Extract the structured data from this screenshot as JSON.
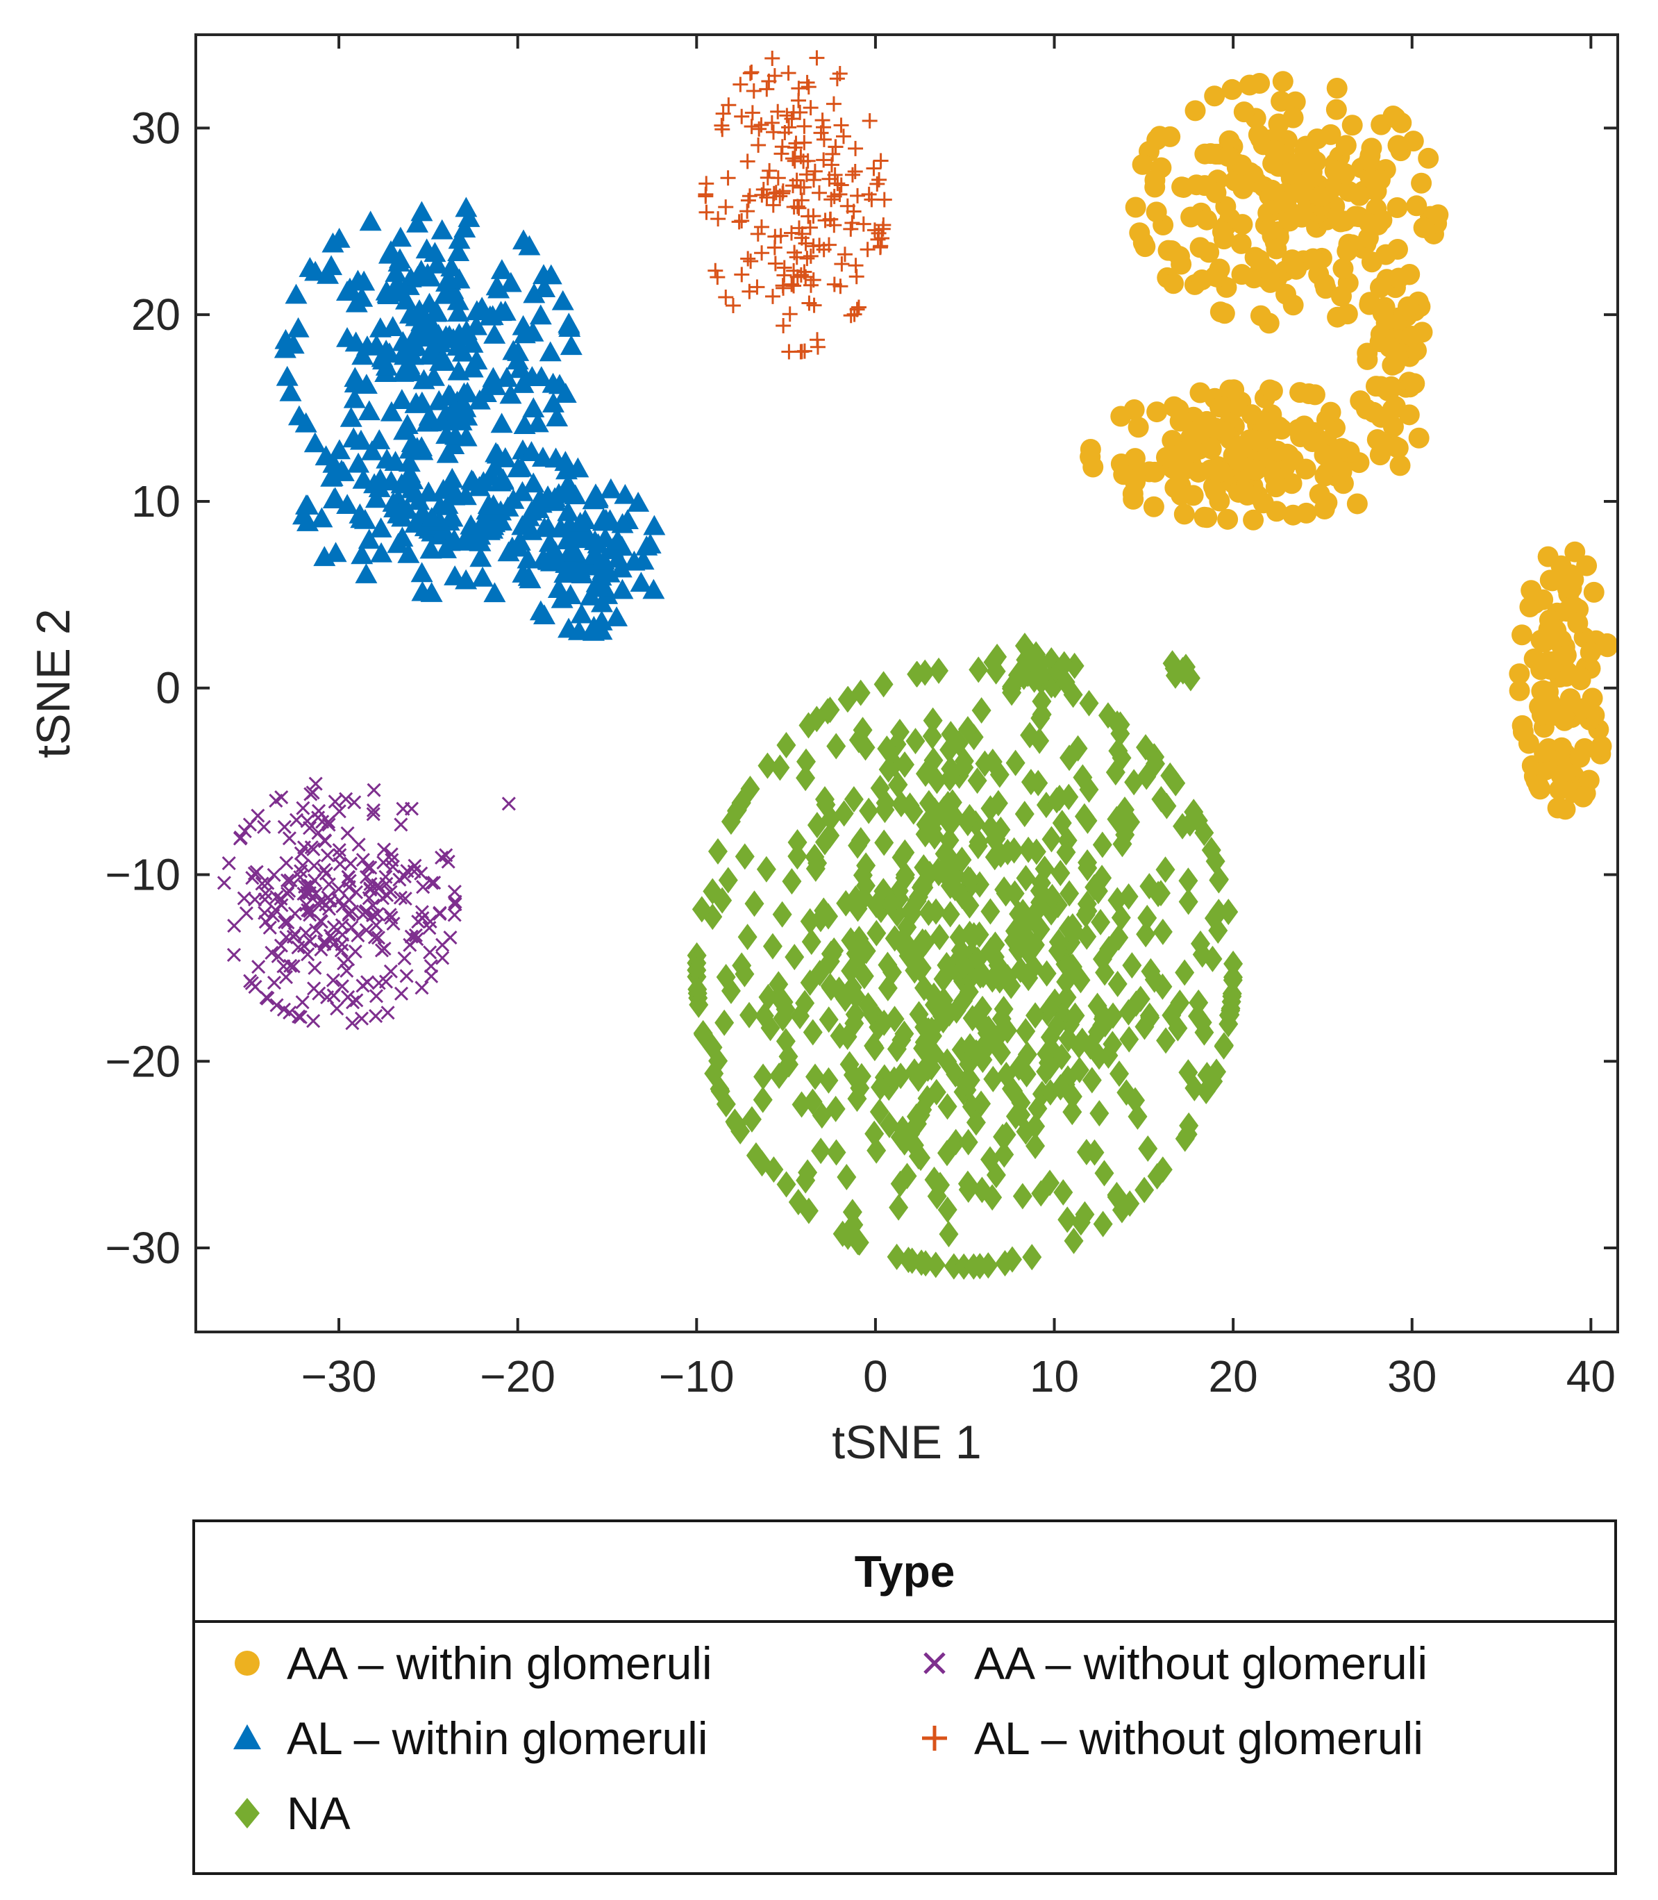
{
  "chart_data": {
    "type": "scatter",
    "title": "",
    "xlabel": "tSNE 1",
    "ylabel": "tSNE 2",
    "xlim": [
      -38,
      41.5
    ],
    "ylim": [
      -34.5,
      35
    ],
    "xticks": [
      -30,
      -20,
      -10,
      0,
      10,
      20,
      30,
      40
    ],
    "yticks": [
      -30,
      -20,
      -10,
      0,
      10,
      20,
      30
    ],
    "xtick_labels": [
      "−30",
      "−20",
      "−10",
      "0",
      "10",
      "20",
      "30",
      "40"
    ],
    "ytick_labels": [
      "−30",
      "−20",
      "−10",
      "0",
      "10",
      "20",
      "30"
    ],
    "grid": false,
    "legend_placement": "below",
    "legend_title": "Type",
    "series": [
      {
        "name": "AA – within glomeruli",
        "marker": "circle",
        "color": "#EDB120",
        "clusters": [
          {
            "cx": 23,
            "cy": 26,
            "rx": 8.5,
            "ry": 6.5,
            "n": 230
          },
          {
            "cx": 21,
            "cy": 12.5,
            "rx": 9,
            "ry": 3.5,
            "n": 160
          },
          {
            "cx": 29,
            "cy": 17,
            "rx": 2,
            "ry": 5,
            "n": 50
          },
          {
            "cx": 38.5,
            "cy": 0.5,
            "rx": 2.5,
            "ry": 7,
            "n": 120
          }
        ]
      },
      {
        "name": "AL – within glomeruli",
        "marker": "triangle",
        "color": "#0072BD",
        "clusters": [
          {
            "cx": -25,
            "cy": 18,
            "rx": 8,
            "ry": 8,
            "n": 230
          },
          {
            "cx": -23,
            "cy": 9,
            "rx": 9,
            "ry": 4,
            "n": 150
          },
          {
            "cx": -16,
            "cy": 7,
            "rx": 4,
            "ry": 4,
            "n": 80
          }
        ]
      },
      {
        "name": "NA",
        "marker": "diamond",
        "color": "#77AC30",
        "clusters": [
          {
            "cx": 5,
            "cy": -15,
            "rx": 15,
            "ry": 16,
            "n": 700
          },
          {
            "cx": 17,
            "cy": 1,
            "rx": 1,
            "ry": 0.6,
            "n": 8
          },
          {
            "cx": 9,
            "cy": 1,
            "rx": 2.5,
            "ry": 1.5,
            "n": 25
          }
        ]
      },
      {
        "name": "AA – without glomeruli",
        "marker": "x",
        "color": "#7E2F8E",
        "clusters": [
          {
            "cx": -30,
            "cy": -11.5,
            "rx": 6.5,
            "ry": 6.5,
            "n": 260
          }
        ],
        "outliers": [
          [
            -20.5,
            -6.2
          ]
        ]
      },
      {
        "name": "AL – without glomeruli",
        "marker": "plus",
        "color": "#D95319",
        "clusters": [
          {
            "cx": -4.5,
            "cy": 26,
            "rx": 5,
            "ry": 8,
            "n": 200
          }
        ]
      }
    ]
  },
  "legend": {
    "title": "Type",
    "items": [
      {
        "label": "AA  –  within glomeruli",
        "marker": "circle",
        "color": "#EDB120"
      },
      {
        "label": "AA  –  without glomeruli",
        "marker": "x",
        "color": "#7E2F8E"
      },
      {
        "label": "AL  –  within glomeruli",
        "marker": "triangle",
        "color": "#0072BD"
      },
      {
        "label": "AL  –  without glomeruli",
        "marker": "plus",
        "color": "#D95319"
      },
      {
        "label": "NA",
        "marker": "diamond",
        "color": "#77AC30"
      }
    ]
  }
}
